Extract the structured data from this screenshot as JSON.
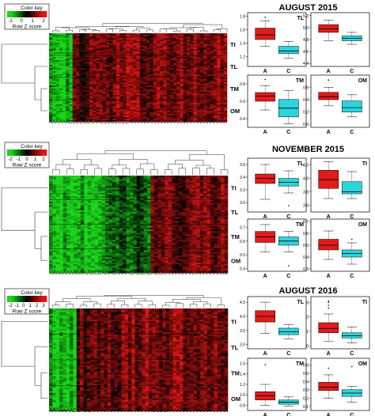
{
  "panels": [
    {
      "title": "AUGUST 2015",
      "color_key": {
        "label": "Color key",
        "ticks": [
          "-1",
          "0",
          "1",
          "2"
        ],
        "axis_label": "Row Z score"
      },
      "row_labels": [
        "TI",
        "TL",
        "TM",
        "OM"
      ],
      "column_labels": "AAAAAACCCCCCAAACCCCCCCCAAAAAAAAAAAAAAAAAAAAAAAAAAAAAA",
      "boxplots": [
        {
          "label": "TL",
          "label_pos": "right",
          "yticks": [
            "1.2",
            "1.4",
            "1.6",
            "1.8"
          ],
          "ylim": [
            1.05,
            1.85
          ],
          "categories": [
            "A",
            "C"
          ],
          "A": {
            "min": 1.35,
            "q1": 1.45,
            "median": 1.52,
            "q3": 1.62,
            "max": 1.73,
            "outliers": [
              1.78
            ]
          },
          "C": {
            "min": 1.17,
            "q1": 1.24,
            "median": 1.28,
            "q3": 1.35,
            "max": 1.42,
            "outliers": []
          }
        },
        {
          "label": "",
          "label_pos": "right",
          "yticks": [
            "4.4",
            "4.6",
            "4.8",
            "5.0",
            "5.2"
          ],
          "ylim": [
            4.35,
            5.25
          ],
          "categories": [
            "A",
            "C"
          ],
          "A": {
            "min": 4.78,
            "q1": 4.92,
            "median": 4.98,
            "q3": 5.05,
            "max": 5.12,
            "outliers": []
          },
          "C": {
            "min": 4.72,
            "q1": 4.78,
            "median": 4.82,
            "q3": 4.86,
            "max": 4.92,
            "outliers": []
          }
        },
        {
          "label": "TM",
          "label_pos": "right",
          "yticks": [
            "0.4",
            "0.6",
            "0.8"
          ],
          "ylim": [
            0.3,
            0.9
          ],
          "categories": [
            "A",
            "C"
          ],
          "A": {
            "min": 0.5,
            "q1": 0.6,
            "median": 0.66,
            "q3": 0.7,
            "max": 0.78,
            "outliers": [
              0.85
            ]
          },
          "C": {
            "min": 0.34,
            "q1": 0.42,
            "median": 0.52,
            "q3": 0.62,
            "max": 0.72,
            "outliers": []
          }
        },
        {
          "label": "OM",
          "label_pos": "right",
          "yticks": [
            "0.0",
            "0.2",
            "0.4",
            "0.6"
          ],
          "ylim": [
            -0.05,
            0.8
          ],
          "categories": [
            "A",
            "C"
          ],
          "A": {
            "min": 0.3,
            "q1": 0.4,
            "median": 0.45,
            "q3": 0.52,
            "max": 0.6,
            "outliers": [
              0.72
            ]
          },
          "C": {
            "min": 0.12,
            "q1": 0.2,
            "median": 0.27,
            "q3": 0.38,
            "max": 0.48,
            "outliers": []
          }
        }
      ]
    },
    {
      "title": "NOVEMBER 2015",
      "color_key": {
        "label": "Color key",
        "ticks": [
          "-2",
          "-1",
          "0",
          "1",
          "2"
        ],
        "axis_label": "Row Z score"
      },
      "row_labels": [
        "TI",
        "TL",
        "TM",
        "OM"
      ],
      "column_labels": "AAAAAAAAAAAACCCAAACAAAACACCACACCAAAAAAAAAAAAAAAAAAC",
      "boxplots": [
        {
          "label": "TL",
          "label_pos": "right",
          "yticks": [
            "3.0",
            "3.2",
            "3.4",
            "3.6"
          ],
          "ylim": [
            2.85,
            3.7
          ],
          "categories": [
            "A",
            "C"
          ],
          "A": {
            "min": 3.05,
            "q1": 3.3,
            "median": 3.38,
            "q3": 3.45,
            "max": 3.6,
            "outliers": []
          },
          "C": {
            "min": 3.15,
            "q1": 3.26,
            "median": 3.32,
            "q3": 3.38,
            "max": 3.5,
            "outliers": [
              2.95
            ]
          }
        },
        {
          "label": "TI",
          "label_pos": "right",
          "yticks": [
            "3.6",
            "3.8",
            "4.0",
            "4.2"
          ],
          "ylim": [
            3.5,
            4.3
          ],
          "categories": [
            "A",
            "C"
          ],
          "A": {
            "min": 3.7,
            "q1": 3.85,
            "median": 3.98,
            "q3": 4.12,
            "max": 4.25,
            "outliers": []
          },
          "C": {
            "min": 3.7,
            "q1": 3.77,
            "median": 3.8,
            "q3": 3.95,
            "max": 4.1,
            "outliers": []
          }
        },
        {
          "label": "TM",
          "label_pos": "right",
          "yticks": [
            "0.4",
            "0.5",
            "0.6",
            "0.7"
          ],
          "ylim": [
            0.38,
            0.76
          ],
          "categories": [
            "A",
            "C"
          ],
          "A": {
            "min": 0.52,
            "q1": 0.59,
            "median": 0.63,
            "q3": 0.67,
            "max": 0.72,
            "outliers": []
          },
          "C": {
            "min": 0.52,
            "q1": 0.57,
            "median": 0.6,
            "q3": 0.63,
            "max": 0.67,
            "outliers": [
              0.42
            ]
          }
        },
        {
          "label": "OM",
          "label_pos": "right",
          "yticks": [
            "0.3",
            "0.4",
            "0.5",
            "0.6",
            "0.7"
          ],
          "ylim": [
            0.28,
            0.72
          ],
          "categories": [
            "A",
            "C"
          ],
          "A": {
            "min": 0.38,
            "q1": 0.46,
            "median": 0.5,
            "q3": 0.55,
            "max": 0.62,
            "outliers": []
          },
          "C": {
            "min": 0.34,
            "q1": 0.4,
            "median": 0.43,
            "q3": 0.46,
            "max": 0.52,
            "outliers": [
              0.55
            ]
          }
        }
      ]
    },
    {
      "title": "AUGUST 2016",
      "color_key": {
        "label": "Color key",
        "ticks": [
          "-2",
          "-1",
          "0",
          "1",
          "2",
          "3"
        ],
        "axis_label": "Row Z score"
      },
      "row_labels": [
        "TI",
        "TL",
        "TM",
        "OM"
      ],
      "column_labels": "AAAAAAACCACCAAAAAAAAAAAAAAAAAACCCCAAAAAAAAAAAAAAAAAA",
      "boxplots": [
        {
          "label": "TL",
          "label_pos": "right",
          "yticks": [
            "3.0",
            "3.5",
            "4.0",
            "4.5"
          ],
          "ylim": [
            2.85,
            4.7
          ],
          "categories": [
            "A",
            "C"
          ],
          "A": {
            "min": 3.4,
            "q1": 3.8,
            "median": 4.0,
            "q3": 4.2,
            "max": 4.5,
            "outliers": []
          },
          "C": {
            "min": 3.2,
            "q1": 3.35,
            "median": 3.45,
            "q3": 3.58,
            "max": 3.7,
            "outliers": []
          }
        },
        {
          "label": "TI",
          "label_pos": "right",
          "yticks": [
            "0",
            "1",
            "2",
            "3"
          ],
          "ylim": [
            -0.2,
            3.4
          ],
          "categories": [
            "A",
            "C"
          ],
          "A": {
            "min": 0.3,
            "q1": 0.9,
            "median": 1.2,
            "q3": 1.6,
            "max": 2.2,
            "outliers": [
              2.6,
              2.8,
              3.0,
              3.1
            ]
          },
          "C": {
            "min": 0.2,
            "q1": 0.55,
            "median": 0.7,
            "q3": 0.9,
            "max": 1.3,
            "outliers": []
          }
        },
        {
          "label": "TM",
          "label_pos": "right",
          "yticks": [
            "0.8",
            "1.0",
            "1.2",
            "1.4",
            "1.6"
          ],
          "ylim": [
            0.7,
            1.7
          ],
          "categories": [
            "A",
            "C"
          ],
          "A": {
            "min": 0.8,
            "q1": 0.9,
            "median": 0.98,
            "q3": 1.06,
            "max": 1.2,
            "outliers": [
              1.58
            ]
          },
          "C": {
            "min": 0.78,
            "q1": 0.82,
            "median": 0.86,
            "q3": 0.9,
            "max": 0.96,
            "outliers": []
          }
        },
        {
          "label": "OM",
          "label_pos": "right",
          "yticks": [
            "0.1",
            "0.2",
            "0.3",
            "0.4",
            "0.5",
            "0.6"
          ],
          "ylim": [
            0.05,
            0.68
          ],
          "categories": [
            "A",
            "C"
          ],
          "A": {
            "min": 0.2,
            "q1": 0.29,
            "median": 0.33,
            "q3": 0.39,
            "max": 0.48,
            "outliers": [
              0.56
            ]
          },
          "C": {
            "min": 0.15,
            "q1": 0.22,
            "median": 0.26,
            "q3": 0.3,
            "max": 0.34,
            "outliers": [
              0.58
            ]
          }
        }
      ]
    }
  ],
  "colors": {
    "red": "#e21b1b",
    "cyan": "#2ad6dc",
    "heat_low": "#15d11a",
    "heat_high": "#e01414"
  }
}
